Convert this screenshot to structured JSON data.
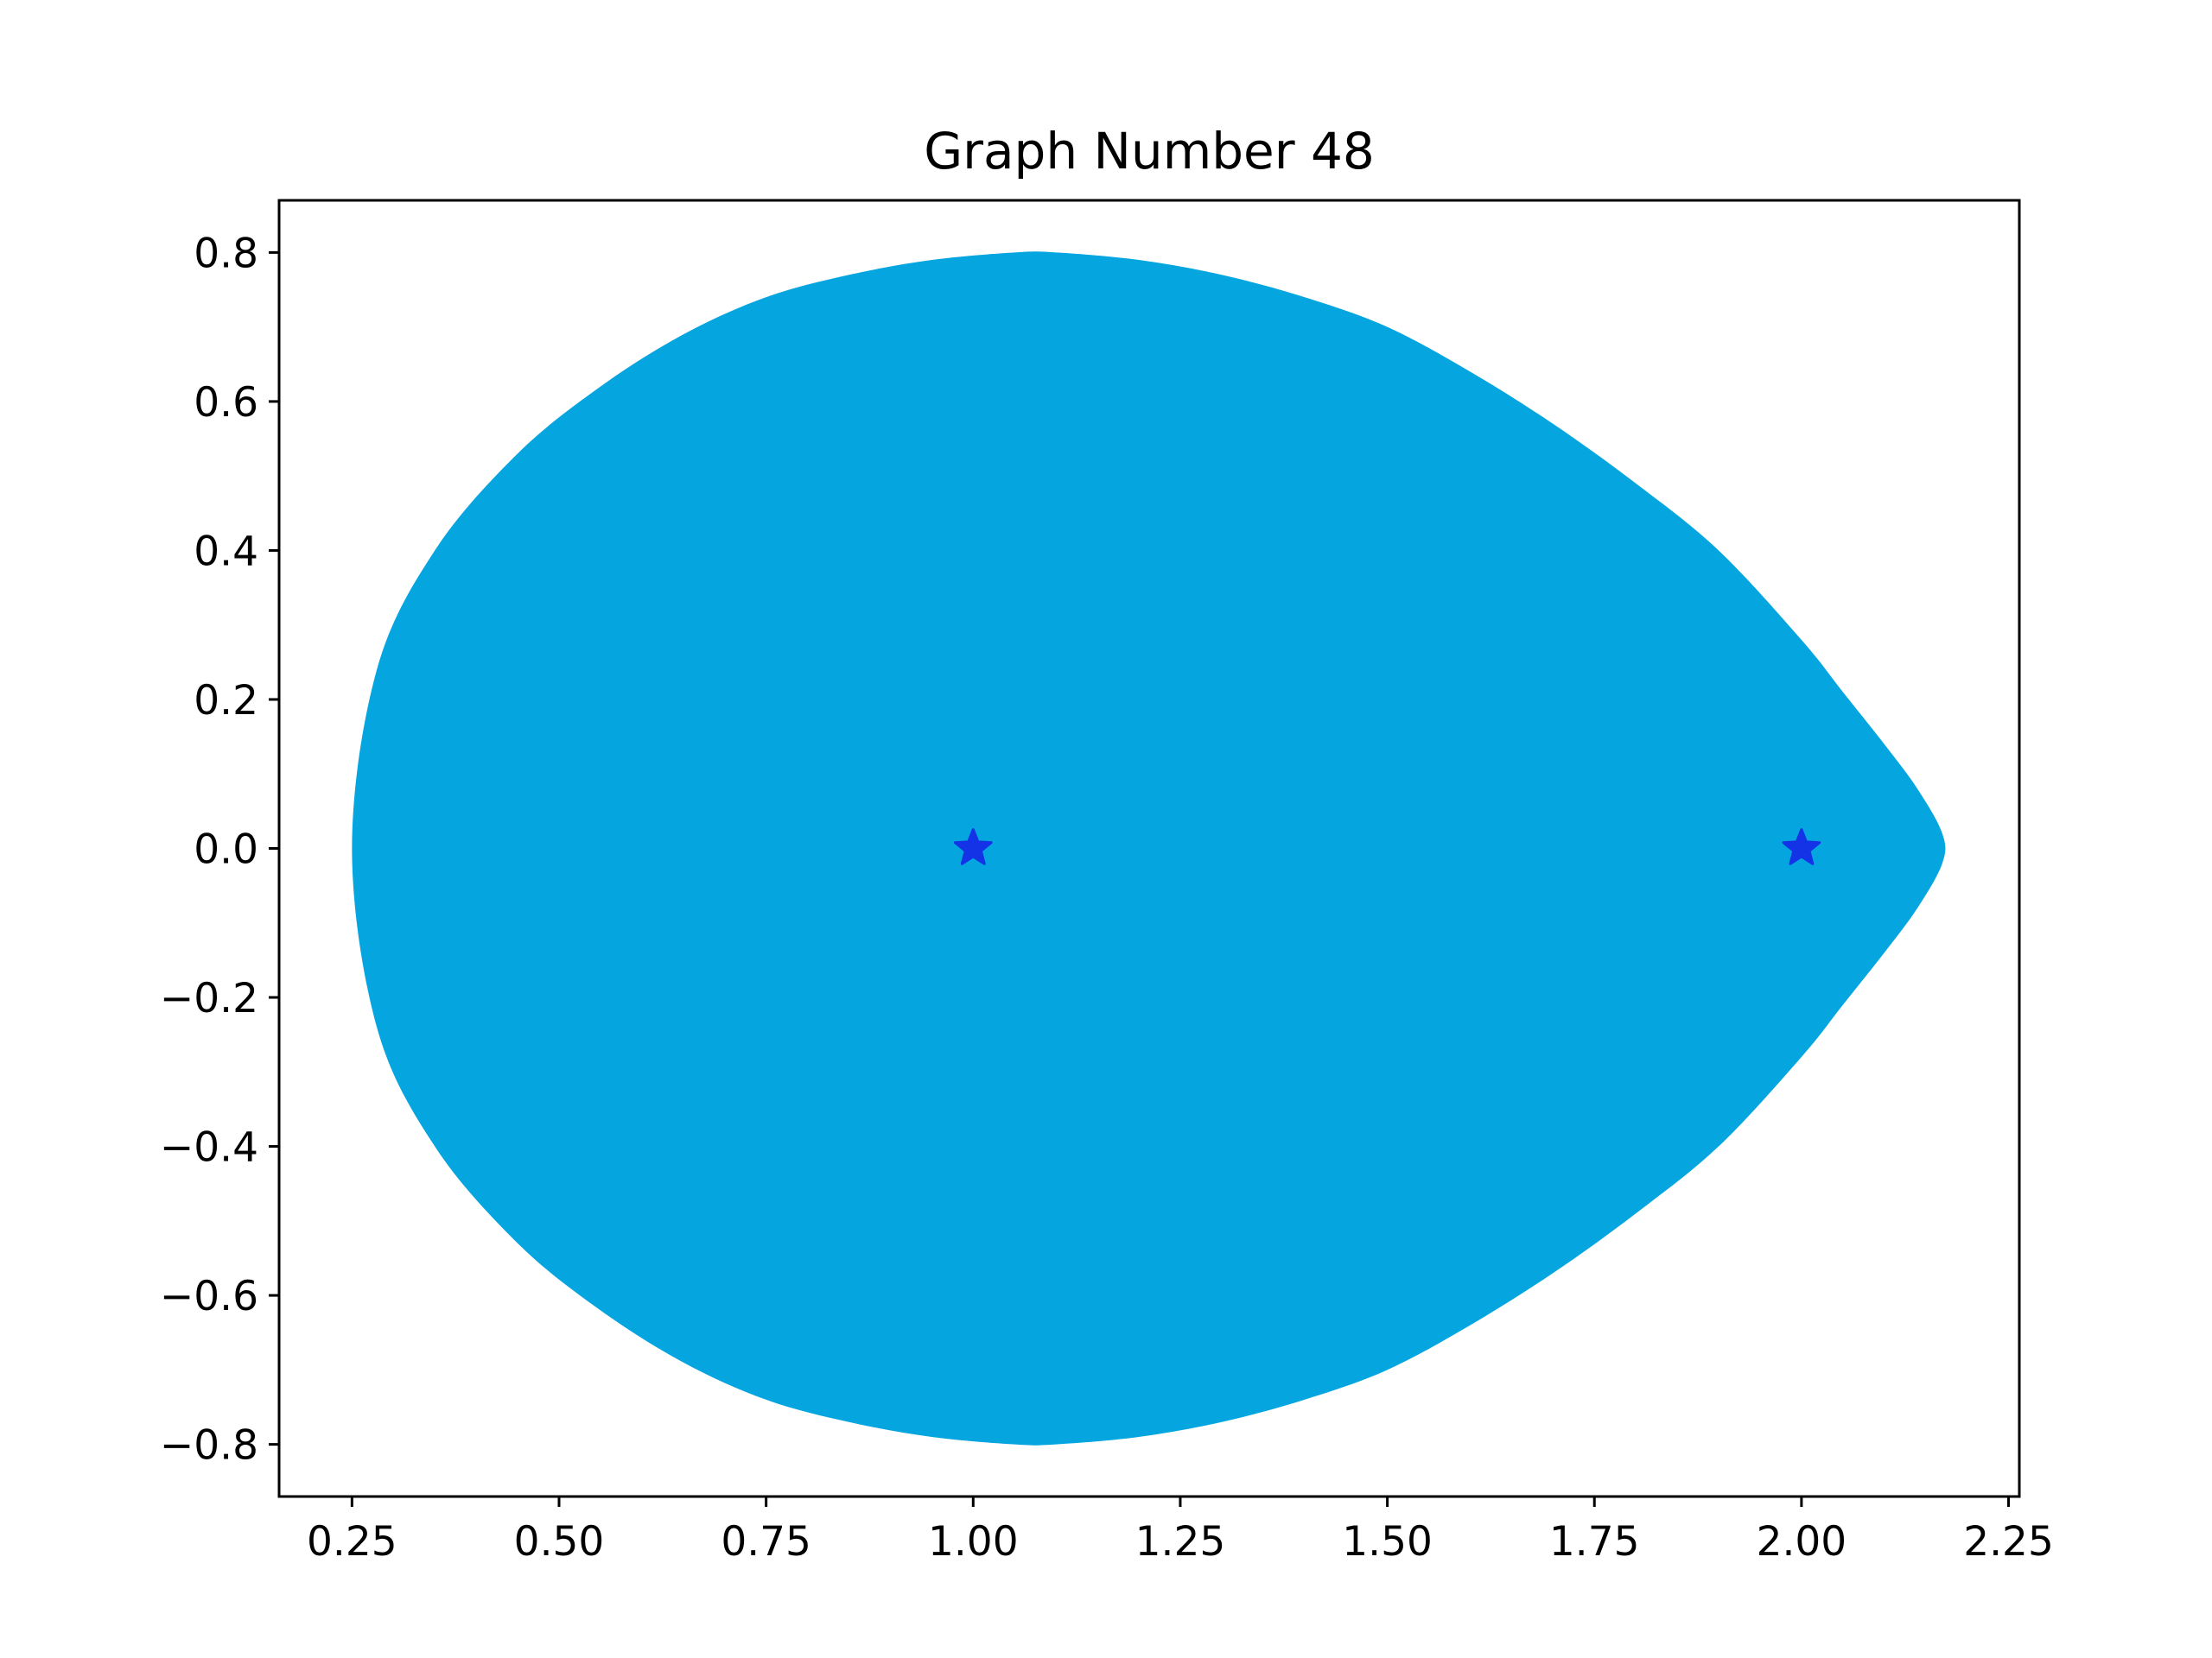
{
  "chart_data": {
    "type": "area",
    "title": "Graph Number 48",
    "xlabel": "",
    "ylabel": "",
    "xlim": [
      0.162,
      2.263
    ],
    "ylim": [
      -0.87,
      0.87
    ],
    "grid": false,
    "xticks": [
      0.25,
      0.5,
      0.75,
      1.0,
      1.25,
      1.5,
      1.75,
      2.0,
      2.25
    ],
    "xtick_labels": [
      "0.25",
      "0.50",
      "0.75",
      "1.00",
      "1.25",
      "1.50",
      "1.75",
      "2.00",
      "2.25"
    ],
    "yticks": [
      0.8,
      0.6,
      0.4,
      0.2,
      0.0,
      -0.2,
      -0.4,
      -0.6,
      -0.8
    ],
    "ytick_labels": [
      "0.8",
      "0.6",
      "0.4",
      "0.2",
      "0.0",
      "−0.2",
      "−0.4",
      "−0.6",
      "−0.8"
    ],
    "fill_color": "#05A5E0",
    "region": {
      "name": "filled-region",
      "x": [
        0.25,
        0.28,
        0.35,
        0.45,
        0.55,
        0.65,
        0.75,
        0.85,
        0.95,
        1.05,
        1.1,
        1.2,
        1.3,
        1.4,
        1.5,
        1.6,
        1.7,
        1.8,
        1.9,
        2.0,
        2.05,
        2.1,
        2.14,
        2.17,
        2.17,
        2.14,
        2.1,
        2.05,
        2.0,
        1.9,
        1.8,
        1.7,
        1.6,
        1.5,
        1.4,
        1.3,
        1.2,
        1.1,
        1.05,
        0.95,
        0.85,
        0.75,
        0.65,
        0.55,
        0.45,
        0.35,
        0.28,
        0.25
      ],
      "y": [
        0.0,
        0.24,
        0.4,
        0.53,
        0.62,
        0.69,
        0.74,
        0.77,
        0.79,
        0.8,
        0.8,
        0.79,
        0.77,
        0.74,
        0.7,
        0.64,
        0.57,
        0.49,
        0.4,
        0.28,
        0.21,
        0.14,
        0.08,
        0.02,
        -0.02,
        -0.08,
        -0.14,
        -0.21,
        -0.28,
        -0.4,
        -0.49,
        -0.57,
        -0.64,
        -0.7,
        -0.74,
        -0.77,
        -0.79,
        -0.8,
        -0.8,
        -0.79,
        -0.77,
        -0.74,
        -0.69,
        -0.62,
        -0.53,
        -0.4,
        -0.24,
        0.0
      ]
    },
    "markers": {
      "marker": "star",
      "color": "#1432E6",
      "points": [
        {
          "x": 1.0,
          "y": 0.0
        },
        {
          "x": 2.0,
          "y": 0.0
        }
      ]
    }
  }
}
